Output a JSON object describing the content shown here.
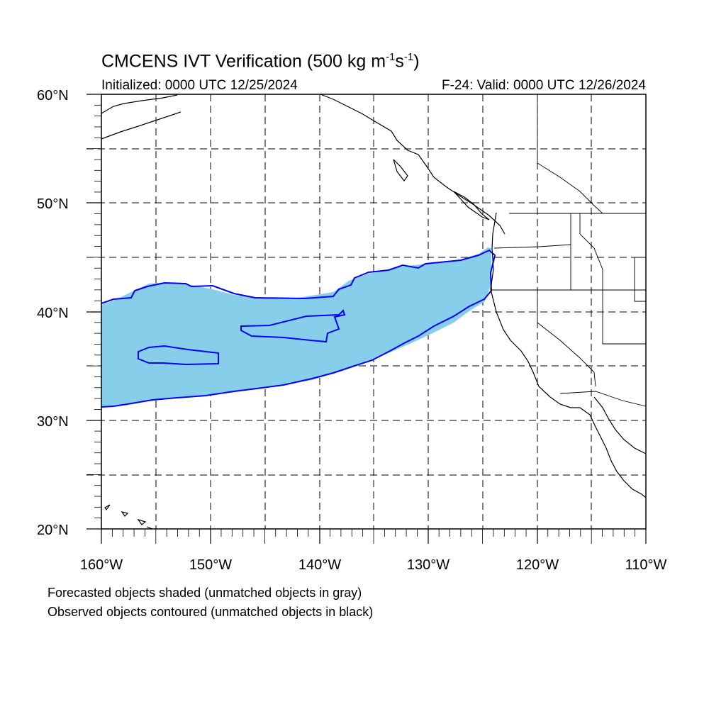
{
  "title": {
    "main": "CMCENS IVT Verification (500 kg m",
    "exp1": "-1",
    "mid": "s",
    "exp2": "-1",
    "close": ")"
  },
  "initialized": "Initialized: 0000 UTC 12/25/2024",
  "valid": "F-24: Valid: 0000 UTC 12/26/2024",
  "lat_labels": [
    "60°N",
    "50°N",
    "40°N",
    "30°N",
    "20°N"
  ],
  "lon_labels": [
    "160°W",
    "150°W",
    "140°W",
    "130°W",
    "120°W",
    "110°W"
  ],
  "notes": [
    "Forecasted objects shaded (unmatched objects in gray)",
    "Observed objects contoured (unmatched objects in black)"
  ],
  "map": {
    "lon_range": [
      -160,
      -110
    ],
    "lat_range": [
      20,
      60
    ],
    "grid": "dashed every 5 degrees",
    "forecast_fill_color": "#87ceeb",
    "observed_contour_color": "#0000ff",
    "coast_color": "#000000"
  }
}
